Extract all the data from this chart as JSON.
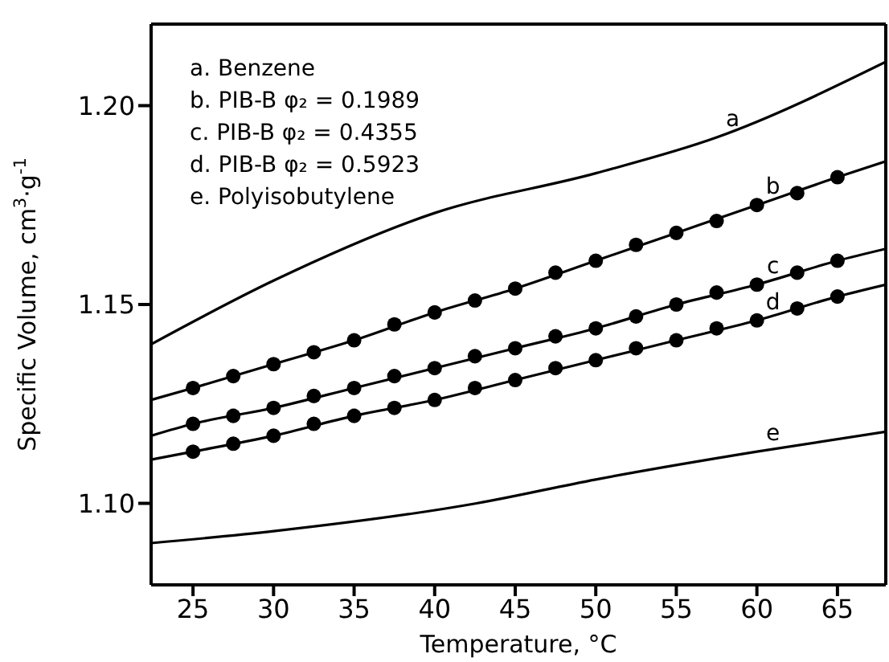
{
  "chart_data": {
    "type": "line",
    "xlabel": "Temperature, °C",
    "ylabel": "Specific Volume, cm$^{3}$·g$^{-1}$",
    "xlim": [
      22.4,
      68
    ],
    "ylim": [
      1.0795,
      1.2205
    ],
    "xticks": [
      25,
      30,
      35,
      40,
      45,
      50,
      55,
      60,
      65
    ],
    "yticks": [
      {
        "value": 1.1,
        "label": "1.10"
      },
      {
        "value": 1.15,
        "label": "1.15"
      },
      {
        "value": 1.2,
        "label": "1.20"
      }
    ],
    "grid": false,
    "line_style": "solid",
    "series": [
      {
        "name": "a",
        "color": "#000000",
        "marker": "none",
        "x": [
          22.4,
          30,
          40,
          50,
          57.5,
          68
        ],
        "values": [
          1.14,
          1.156,
          1.173,
          1.183,
          1.192,
          1.211
        ]
      },
      {
        "name": "b",
        "color": "#000000",
        "marker": "none",
        "x": [
          22.4,
          25,
          30,
          35,
          40,
          45,
          50,
          55,
          60,
          65,
          68
        ],
        "values": [
          1.126,
          1.129,
          1.135,
          1.141,
          1.148,
          1.154,
          1.161,
          1.168,
          1.175,
          1.182,
          1.186
        ]
      },
      {
        "type": "scatter",
        "color": "#000000",
        "marker": "circle",
        "x": [
          25,
          27.5,
          30,
          32.5,
          35,
          37.5,
          40,
          42.5,
          45,
          47.5,
          50,
          52.5,
          55,
          57.5,
          60,
          62.5,
          65
        ],
        "values": [
          1.129,
          1.132,
          1.135,
          1.138,
          1.141,
          1.145,
          1.148,
          1.151,
          1.154,
          1.158,
          1.161,
          1.165,
          1.168,
          1.171,
          1.175,
          1.178,
          1.182
        ]
      },
      {
        "name": "c",
        "color": "#000000",
        "marker": "none",
        "x": [
          22.4,
          25,
          30,
          35,
          40,
          45,
          50,
          55,
          60,
          65,
          68
        ],
        "values": [
          1.117,
          1.12,
          1.124,
          1.129,
          1.134,
          1.139,
          1.144,
          1.15,
          1.155,
          1.161,
          1.164
        ]
      },
      {
        "type": "scatter",
        "color": "#000000",
        "marker": "circle",
        "x": [
          25,
          27.5,
          30,
          32.5,
          35,
          37.5,
          40,
          42.5,
          45,
          47.5,
          50,
          52.5,
          55,
          57.5,
          60,
          62.5,
          65
        ],
        "values": [
          1.12,
          1.122,
          1.124,
          1.127,
          1.129,
          1.132,
          1.134,
          1.137,
          1.139,
          1.142,
          1.144,
          1.147,
          1.15,
          1.153,
          1.155,
          1.158,
          1.161
        ]
      },
      {
        "name": "d",
        "color": "#000000",
        "marker": "none",
        "x": [
          22.4,
          25,
          30,
          35,
          40,
          45,
          50,
          55,
          60,
          65,
          68
        ],
        "values": [
          1.111,
          1.113,
          1.117,
          1.122,
          1.126,
          1.131,
          1.136,
          1.141,
          1.146,
          1.152,
          1.155
        ]
      },
      {
        "type": "scatter",
        "color": "#000000",
        "marker": "circle",
        "x": [
          25,
          27.5,
          30,
          32.5,
          35,
          37.5,
          40,
          42.5,
          45,
          47.5,
          50,
          52.5,
          55,
          57.5,
          60,
          62.5,
          65
        ],
        "values": [
          1.113,
          1.115,
          1.117,
          1.12,
          1.122,
          1.124,
          1.126,
          1.129,
          1.131,
          1.134,
          1.136,
          1.139,
          1.141,
          1.144,
          1.146,
          1.149,
          1.152
        ]
      },
      {
        "name": "e",
        "color": "#000000",
        "marker": "none",
        "x": [
          22.4,
          30,
          42.6,
          50,
          60,
          68
        ],
        "values": [
          1.09,
          1.093,
          1.1,
          1.106,
          1.113,
          1.118
        ]
      }
    ],
    "annotations": [
      "a. Benzene",
      "b. PIB-B φ₂ = 0.1989",
      "c. PIB-B φ₂ = 0.4355",
      "d. PIB-B φ₂ = 0.5923",
      "e. Polyisobutylene"
    ]
  }
}
